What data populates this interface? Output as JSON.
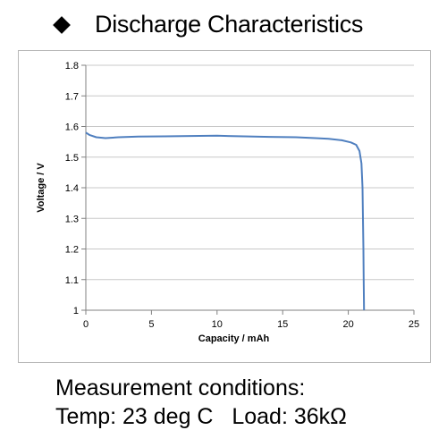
{
  "header": {
    "bullet_icon": "diamond-icon",
    "title": "Discharge Characteristics"
  },
  "conditions": {
    "heading": "Measurement conditions:",
    "line": "Temp: 23 deg C   Load: 36kΩ"
  },
  "chart_data": {
    "type": "line",
    "title": "",
    "xlabel": "Capacity  /  mAh",
    "ylabel": "Voltage  /  V",
    "xlim": [
      0,
      25
    ],
    "ylim": [
      1,
      1.8
    ],
    "xticks": [
      0,
      5,
      10,
      15,
      20,
      25
    ],
    "yticks": [
      1,
      1.1,
      1.2,
      1.3,
      1.4,
      1.5,
      1.6,
      1.7,
      1.8
    ],
    "xtick_labels": [
      "0",
      "5",
      "10",
      "15",
      "20",
      "25"
    ],
    "ytick_labels": [
      "1",
      "1.1",
      "1.2",
      "1.3",
      "1.4",
      "1.5",
      "1.6",
      "1.7",
      "1.8"
    ],
    "grid": "horizontal",
    "line_color": "#4f7fbf",
    "series": [
      {
        "x": [
          0,
          0.3,
          0.8,
          1.5,
          2.5,
          4,
          6,
          8,
          10,
          12,
          14,
          16,
          17.5,
          18.5,
          19.5,
          20.2,
          20.6,
          20.85,
          21.0,
          21.08,
          21.12,
          21.15,
          21.17,
          21.2
        ],
        "y": [
          1.58,
          1.572,
          1.565,
          1.562,
          1.565,
          1.567,
          1.568,
          1.569,
          1.57,
          1.568,
          1.566,
          1.565,
          1.562,
          1.56,
          1.555,
          1.548,
          1.54,
          1.52,
          1.48,
          1.4,
          1.3,
          1.2,
          1.1,
          1.0
        ]
      }
    ]
  }
}
